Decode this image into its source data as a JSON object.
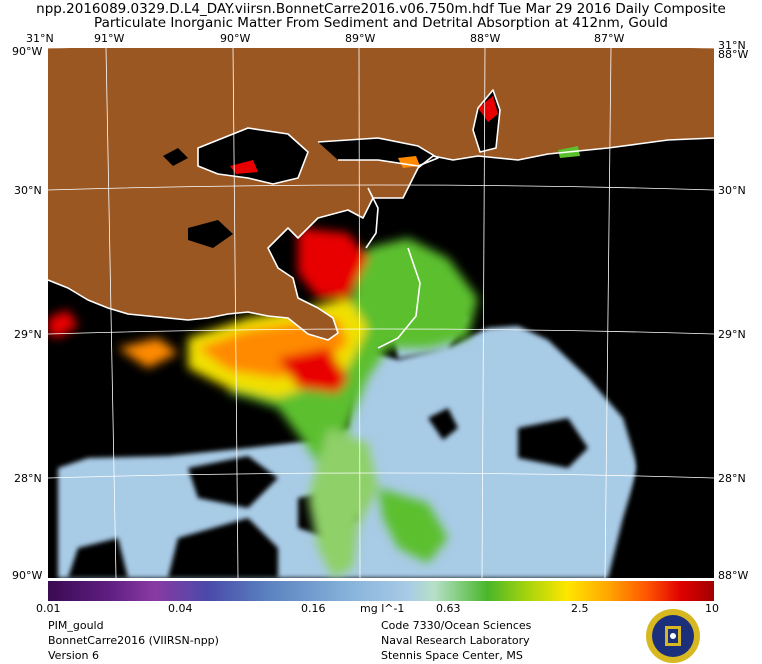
{
  "header": {
    "line1": "npp.2016089.0329.D.L4_DAY.viirsn.BonnetCarre2016.v06.750m.hdf     Tue Mar 29 2016 Daily Composite",
    "line2": "Particulate Inorganic Matter From Sediment and Detrital Absorption at 412nm, Gould"
  },
  "map": {
    "longitude_labels": [
      "91°W",
      "90°W",
      "89°W",
      "88°W",
      "87°W"
    ],
    "latitude_labels": [
      "30°N",
      "29°N",
      "28°N"
    ],
    "corner_top_left_lat": "31°N",
    "corner_top_right_lat": "31°N",
    "corner_top_left_lon": "90°W",
    "corner_top_right_lon": "88°W",
    "corner_bottom_left": "90°W",
    "corner_bottom_right": "88°W",
    "colors": {
      "land": "#9b5722",
      "no_data": "#000000",
      "coastline": "#ffffff",
      "graticule": "#ffffff",
      "clear_water": "#a8cbe6"
    }
  },
  "colorbar": {
    "ticks": [
      "0.01",
      "0.04",
      "0.16",
      "0.63",
      "2.5",
      "10"
    ],
    "unit": "mg l^-1",
    "scale": "logarithmic"
  },
  "footer": {
    "left": [
      "PIM_gould",
      "BonnetCarre2016 (VIIRSN-npp)",
      "Version 6"
    ],
    "right": [
      "Code 7330/Ocean Sciences",
      "Naval Research Laboratory",
      "Stennis Space Center, MS"
    ]
  }
}
